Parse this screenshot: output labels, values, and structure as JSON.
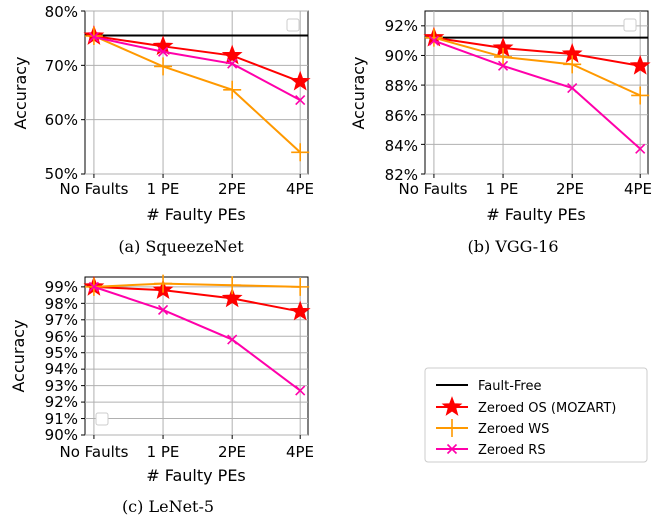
{
  "colors": {
    "fault_free": "#000000",
    "zeroed_os": "#ff0000",
    "zeroed_ws": "#ff9900",
    "zeroed_rs": "#ff00aa",
    "grid": "#b0b0b0"
  },
  "legend": {
    "placement": "lower-right",
    "entries": [
      "Fault-Free",
      "Zeroed OS (MOZART)",
      "Zeroed WS",
      "Zeroed RS"
    ]
  },
  "chart_data": [
    {
      "type": "line",
      "caption": "(a)  SqueezeNet",
      "xlabel": "# Faulty PEs",
      "ylabel": "Accuracy",
      "categories": [
        "No Faults",
        "1 PE",
        "2PE",
        "4PE"
      ],
      "yticks": [
        "50%",
        "60%",
        "70%",
        "80%"
      ],
      "ylim": [
        50,
        80
      ],
      "grid": true,
      "series": [
        {
          "name": "Fault-Free",
          "values": [
            75.5,
            75.5,
            75.5,
            75.5
          ]
        },
        {
          "name": "Zeroed OS (MOZART)",
          "values": [
            75.4,
            73.5,
            71.8,
            67.0
          ]
        },
        {
          "name": "Zeroed WS",
          "values": [
            75.4,
            69.8,
            65.5,
            54.0
          ]
        },
        {
          "name": "Zeroed RS",
          "values": [
            75.2,
            72.5,
            70.3,
            63.6
          ]
        }
      ]
    },
    {
      "type": "line",
      "caption": "(b)  VGG-16",
      "xlabel": "# Faulty PEs",
      "ylabel": "Accuracy",
      "categories": [
        "No Faults",
        "1 PE",
        "2PE",
        "4PE"
      ],
      "yticks": [
        "82%",
        "84%",
        "86%",
        "88%",
        "90%",
        "92%"
      ],
      "ylim": [
        82,
        93
      ],
      "grid": true,
      "series": [
        {
          "name": "Fault-Free",
          "values": [
            91.2,
            91.2,
            91.2,
            91.2
          ]
        },
        {
          "name": "Zeroed OS (MOZART)",
          "values": [
            91.2,
            90.5,
            90.1,
            89.3
          ]
        },
        {
          "name": "Zeroed WS",
          "values": [
            91.2,
            89.9,
            89.4,
            87.3
          ]
        },
        {
          "name": "Zeroed RS",
          "values": [
            91.0,
            89.3,
            87.8,
            83.7
          ]
        }
      ]
    },
    {
      "type": "line",
      "caption": "(c)  LeNet-5",
      "xlabel": "# Faulty PEs",
      "ylabel": "Accuracy",
      "categories": [
        "No Faults",
        "1 PE",
        "2PE",
        "4PE"
      ],
      "yticks": [
        "90%",
        "91%",
        "92%",
        "93%",
        "94%",
        "95%",
        "96%",
        "97%",
        "98%",
        "99%"
      ],
      "ylim": [
        90,
        99.6
      ],
      "grid": true,
      "series": [
        {
          "name": "Zeroed OS (MOZART)",
          "values": [
            99.0,
            98.8,
            98.3,
            97.5
          ]
        },
        {
          "name": "Zeroed WS",
          "values": [
            99.0,
            99.2,
            99.1,
            99.0
          ]
        },
        {
          "name": "Zeroed RS",
          "values": [
            99.0,
            97.6,
            95.8,
            92.7
          ]
        }
      ]
    }
  ]
}
